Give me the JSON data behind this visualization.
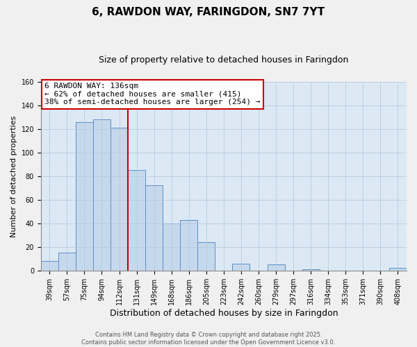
{
  "title": "6, RAWDON WAY, FARINGDON, SN7 7YT",
  "subtitle": "Size of property relative to detached houses in Faringdon",
  "xlabel": "Distribution of detached houses by size in Faringdon",
  "ylabel": "Number of detached properties",
  "bar_labels": [
    "39sqm",
    "57sqm",
    "75sqm",
    "94sqm",
    "112sqm",
    "131sqm",
    "149sqm",
    "168sqm",
    "186sqm",
    "205sqm",
    "223sqm",
    "242sqm",
    "260sqm",
    "279sqm",
    "297sqm",
    "316sqm",
    "334sqm",
    "353sqm",
    "371sqm",
    "390sqm",
    "408sqm"
  ],
  "bar_heights": [
    8,
    15,
    126,
    128,
    121,
    85,
    72,
    40,
    43,
    24,
    0,
    6,
    0,
    5,
    0,
    1,
    0,
    0,
    0,
    0,
    2
  ],
  "bar_color": "#c6d9ec",
  "bar_edge_color": "#5b8dc4",
  "vline_bin_index": 5,
  "annotation_title": "6 RAWDON WAY: 136sqm",
  "annotation_line1": "← 62% of detached houses are smaller (415)",
  "annotation_line2": "38% of semi-detached houses are larger (254) →",
  "vline_color": "#cc0000",
  "background_color": "#f0f0f0",
  "plot_bg_color": "#dce9f5",
  "footer_line1": "Contains HM Land Registry data © Crown copyright and database right 2025.",
  "footer_line2": "Contains public sector information licensed under the Open Government Licence v3.0.",
  "ylim": [
    0,
    160
  ],
  "title_fontsize": 11,
  "subtitle_fontsize": 9,
  "annotation_fontsize": 8,
  "annotation_box_color": "#ffffff",
  "annotation_box_edge": "#cc0000",
  "footer_fontsize": 6,
  "ylabel_fontsize": 8,
  "xlabel_fontsize": 9,
  "tick_fontsize": 7
}
